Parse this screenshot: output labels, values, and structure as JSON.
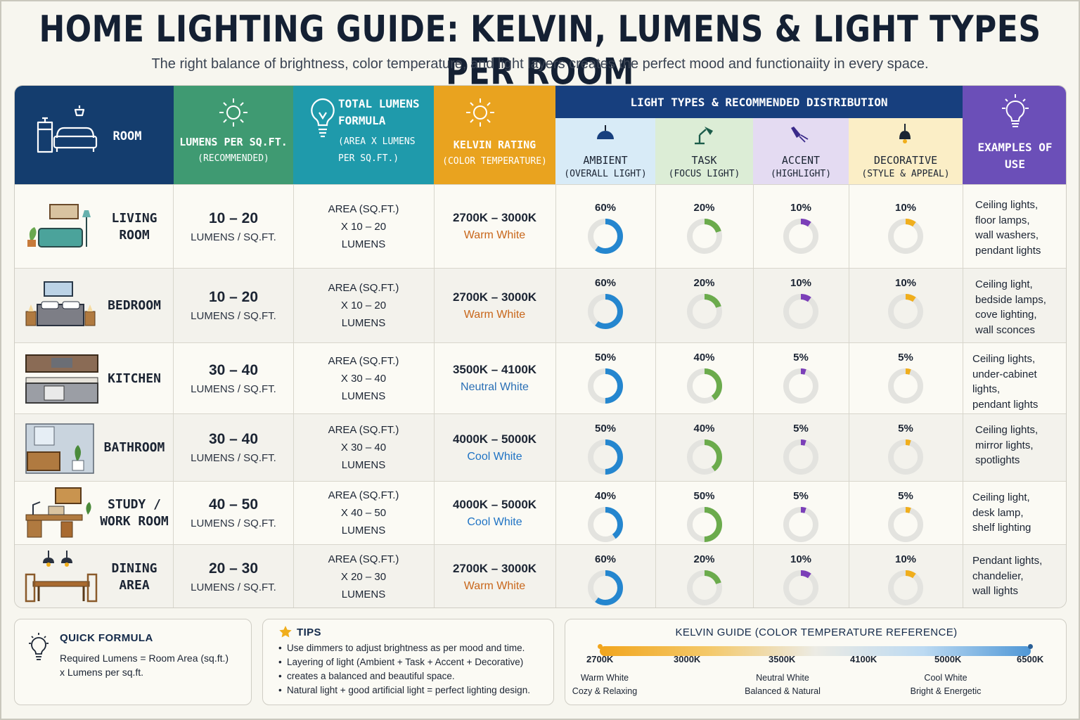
{
  "header": {
    "title": "HOME LIGHTING GUIDE: KELVIN, LUMENS & LIGHT TYPES PER ROOM",
    "subtitle": "The right balance of brightness, color temperature, and light layers creates the perfect mood and functionaiity in every space."
  },
  "columns": {
    "room": "ROOM",
    "lumens_per_sqft": "LUMENS PER SQ.FT.",
    "lumens_per_sqft_sub": "(RECOMMENDED)",
    "total_formula_1": "TOTAL LUMENS",
    "total_formula_2": "FORMULA",
    "total_formula_sub1": "(AREA X LUMENS",
    "total_formula_sub2": "PER SQ.FT.)",
    "kelvin": "KELVIN RATING",
    "kelvin_sub": "(COLOR TEMPERATURE)",
    "light_types": "LIGHT TYPES & RECOMMENDED DISTRIBUTION",
    "ambient": "AMBIENT",
    "ambient_sub": "(OVERALL LIGHT)",
    "task": "TASK",
    "task_sub": "(FOCUS LIGHT)",
    "accent": "ACCENT",
    "accent_sub": "(HIGHLIGHT)",
    "decorative": "DECORATIVE",
    "decorative_sub": "(STYLE & APPEAL)",
    "examples_1": "EXAMPLES OF",
    "examples_2": "USE"
  },
  "rows": [
    {
      "room1": "LIVING",
      "room2": "ROOM",
      "lum": "10 – 20",
      "lum_unit": "LUMENS / SQ.FT.",
      "f1": "AREA (SQ.FT.)",
      "f2": "X 10 – 20",
      "f3": "LUMENS",
      "kelvin": "2700K – 3000K",
      "kelvin_label": "Warm White",
      "kelvin_color": "#c8661a",
      "ambient": 60,
      "task": 20,
      "accent": 10,
      "decorative": 10,
      "ambient_t": "60%",
      "task_t": "20%",
      "accent_t": "10%",
      "decorative_t": "10%",
      "ex1": "Ceiling lights,",
      "ex2": "floor lamps,",
      "ex3": "wall washers,",
      "ex4": "pendant lights"
    },
    {
      "room1": "BEDROOM",
      "room2": "",
      "lum": "10 – 20",
      "lum_unit": "LUMENS / SQ.FT.",
      "f1": "AREA (SQ.FT.)",
      "f2": "X 10 – 20",
      "f3": "LUMENS",
      "kelvin": "2700K – 3000K",
      "kelvin_label": "Warm White",
      "kelvin_color": "#c8661a",
      "ambient": 60,
      "task": 20,
      "accent": 10,
      "decorative": 10,
      "ambient_t": "60%",
      "task_t": "20%",
      "accent_t": "10%",
      "decorative_t": "10%",
      "ex1": "Ceiling light,",
      "ex2": "bedside lamps,",
      "ex3": "cove lighting,",
      "ex4": "wall sconces"
    },
    {
      "room1": "KITCHEN",
      "room2": "",
      "lum": "30 – 40",
      "lum_unit": "LUMENS / SQ.FT.",
      "f1": "AREA (SQ.FT.)",
      "f2": "X 30 – 40",
      "f3": "LUMENS",
      "kelvin": "3500K – 4100K",
      "kelvin_label": "Neutral White",
      "kelvin_color": "#2a6fb5",
      "ambient": 50,
      "task": 40,
      "accent": 5,
      "decorative": 5,
      "ambient_t": "50%",
      "task_t": "40%",
      "accent_t": "5%",
      "decorative_t": "5%",
      "ex1": "Ceiling lights,",
      "ex2": "under-cabinet lights,",
      "ex3": "pendant lights",
      "ex4": ""
    },
    {
      "room1": "BATHROOM",
      "room2": "",
      "lum": "30 – 40",
      "lum_unit": "LUMENS / SQ.FT.",
      "f1": "AREA (SQ.FT.)",
      "f2": "X 30 – 40",
      "f3": "LUMENS",
      "kelvin": "4000K – 5000K",
      "kelvin_label": "Cool White",
      "kelvin_color": "#1f73c4",
      "ambient": 50,
      "task": 40,
      "accent": 5,
      "decorative": 5,
      "ambient_t": "50%",
      "task_t": "40%",
      "accent_t": "5%",
      "decorative_t": "5%",
      "ex1": "Ceiling lights,",
      "ex2": "mirror lights,",
      "ex3": "spotlights",
      "ex4": ""
    },
    {
      "room1": "STUDY /",
      "room2": "WORK ROOM",
      "lum": "40 – 50",
      "lum_unit": "LUMENS / SQ.FT.",
      "f1": "AREA (SQ.FT.)",
      "f2": "X 40 – 50",
      "f3": "LUMENS",
      "kelvin": "4000K – 5000K",
      "kelvin_label": "Cool White",
      "kelvin_color": "#1f73c4",
      "ambient": 40,
      "task": 50,
      "accent": 5,
      "decorative": 5,
      "ambient_t": "40%",
      "task_t": "50%",
      "accent_t": "5%",
      "decorative_t": "5%",
      "ex1": "Ceiling light,",
      "ex2": "desk lamp,",
      "ex3": "shelf lighting",
      "ex4": ""
    },
    {
      "room1": "DINING",
      "room2": "AREA",
      "lum": "20 – 30",
      "lum_unit": "LUMENS / SQ.FT.",
      "f1": "AREA (SQ.FT.)",
      "f2": "X 20 – 30",
      "f3": "LUMENS",
      "kelvin": "2700K – 3000K",
      "kelvin_label": "Warm White",
      "kelvin_color": "#c8661a",
      "ambient": 60,
      "task": 20,
      "accent": 10,
      "decorative": 10,
      "ambient_t": "60%",
      "task_t": "20%",
      "accent_t": "10%",
      "decorative_t": "10%",
      "ex1": "Pendant lights,",
      "ex2": "chandelier,",
      "ex3": "wall lights",
      "ex4": ""
    }
  ],
  "colors": {
    "room_header": "#143d6e",
    "lumens_header": "#3f9a72",
    "formula_header": "#1f9aab",
    "kelvin_header": "#e9a31f",
    "lighttypes_header": "#173f7e",
    "examples_header": "#6b4fb8",
    "ambient": "#2486cf",
    "task": "#6bab4c",
    "accent": "#7b3fb8",
    "decorative": "#f0ae1c",
    "ring_track": "#e3e3df"
  },
  "quick_formula": {
    "title": "QUICK FORMULA",
    "line1": "Required Lumens = Room Area (sq.ft.)",
    "line2": "x Lumens per sq.ft."
  },
  "tips": {
    "title": "TIPS",
    "items": [
      "Use dimmers to adjust brightness as per mood and time.",
      "Layering of light (Ambient + Task + Accent + Decorative)",
      "creates a balanced and beautiful space.",
      "Natural light + good artificial light = perfect lighting design."
    ]
  },
  "kelvin_guide": {
    "title": "KELVIN GUIDE (COLOR TEMPERATURE REFERENCE)",
    "ticks": [
      "2700K",
      "3000K",
      "3500K",
      "4100K",
      "5000K",
      "6500K"
    ],
    "warm": "Warm White",
    "warm_sub": "Cozy & Relaxing",
    "neutral": "Neutral White",
    "neutral_sub": "Balanced & Natural",
    "cool": "Cool White",
    "cool_sub": "Bright & Energetic"
  }
}
